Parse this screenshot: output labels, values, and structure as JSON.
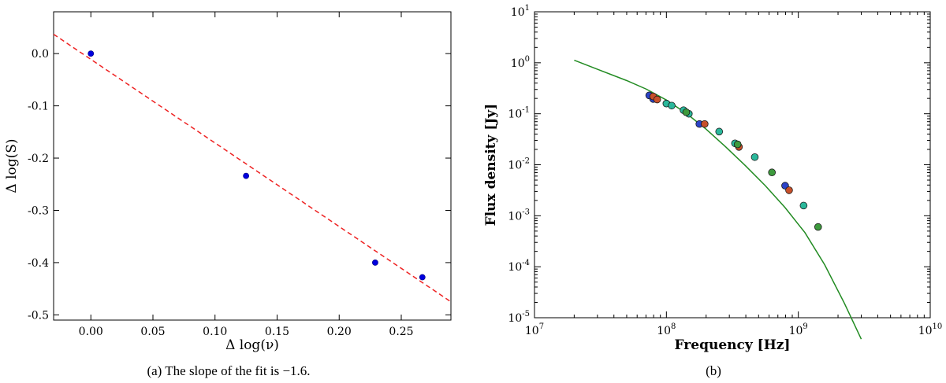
{
  "chart_data": [
    {
      "type": "scatter",
      "panel": "a",
      "caption": "(a)  The slope of the fit is −1.6.",
      "xlabel": "Δ log(ν)",
      "ylabel": "Δ log(S)",
      "xlim": [
        -0.03,
        0.29
      ],
      "ylim": [
        -0.51,
        0.08
      ],
      "xticks": [
        0.0,
        0.05,
        0.1,
        0.15,
        0.2,
        0.25
      ],
      "xtick_labels": [
        "0.00",
        "0.05",
        "0.10",
        "0.15",
        "0.20",
        "0.25"
      ],
      "yticks": [
        0.0,
        -0.1,
        -0.2,
        -0.3,
        -0.4,
        -0.5
      ],
      "ytick_labels": [
        "0.0",
        "-0.1",
        "-0.2",
        "-0.3",
        "-0.4",
        "-0.5"
      ],
      "points": [
        [
          0.0,
          0.0
        ],
        [
          0.125,
          -0.234
        ],
        [
          0.229,
          -0.4
        ],
        [
          0.267,
          -0.428
        ]
      ],
      "point_color": "#0000dd",
      "fit": {
        "slope": -1.6,
        "intercept": -0.011,
        "color": "#ee2222",
        "style": "dashed"
      }
    },
    {
      "type": "scatter",
      "panel": "b",
      "caption": "(b)",
      "xlabel": "Frequency [Hz]",
      "ylabel": "Flux density [Jy]",
      "xscale": "log",
      "yscale": "log",
      "xlim_exp": [
        7,
        10
      ],
      "ylim_exp": [
        -5,
        1
      ],
      "tick_base": "10",
      "xtick_exps": [
        "7",
        "8",
        "9",
        "10"
      ],
      "ytick_exps": [
        "-5",
        "-4",
        "-3",
        "-2",
        "-1",
        "0",
        "1"
      ],
      "curve_color": "#228b22",
      "curve": [
        [
          7.301,
          0.05
        ],
        [
          7.5,
          -0.15
        ],
        [
          7.7,
          -0.35
        ],
        [
          7.85,
          -0.52
        ],
        [
          8.0,
          -0.73
        ],
        [
          8.15,
          -0.99
        ],
        [
          8.3,
          -1.3
        ],
        [
          8.45,
          -1.65
        ],
        [
          8.6,
          -2.02
        ],
        [
          8.75,
          -2.41
        ],
        [
          8.9,
          -2.84
        ],
        [
          9.05,
          -3.33
        ],
        [
          9.2,
          -3.96
        ],
        [
          9.35,
          -4.72
        ],
        [
          9.477,
          -5.42
        ]
      ],
      "series": [
        {
          "name": "blue",
          "color": "#2b43c8",
          "points": [
            [
              7.87,
              -0.64
            ],
            [
              7.9,
              -0.71
            ],
            [
              8.25,
              -1.2
            ],
            [
              8.9,
              -2.41
            ]
          ]
        },
        {
          "name": "red",
          "color": "#c8502a",
          "points": [
            [
              7.9,
              -0.66
            ],
            [
              7.93,
              -0.72
            ],
            [
              8.29,
              -1.2
            ],
            [
              8.55,
              -1.65
            ],
            [
              8.93,
              -2.5
            ]
          ]
        },
        {
          "name": "teal",
          "color": "#2ab89b",
          "points": [
            [
              8.0,
              -0.8
            ],
            [
              8.04,
              -0.84
            ],
            [
              8.13,
              -0.93
            ],
            [
              8.17,
              -1.0
            ],
            [
              8.4,
              -1.35
            ],
            [
              8.52,
              -1.58
            ],
            [
              8.67,
              -1.85
            ],
            [
              9.04,
              -2.8
            ]
          ]
        },
        {
          "name": "green",
          "color": "#3d9a3d",
          "points": [
            [
              8.15,
              -0.97
            ],
            [
              8.54,
              -1.6
            ],
            [
              8.8,
              -2.15
            ],
            [
              9.15,
              -3.22
            ]
          ]
        }
      ]
    }
  ]
}
